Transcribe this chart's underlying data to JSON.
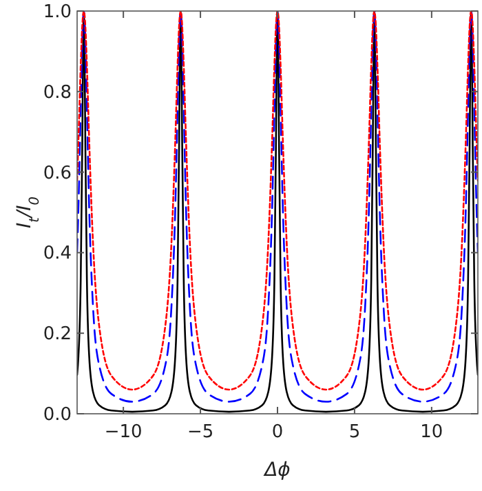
{
  "chart_data": {
    "type": "line",
    "xlabel": "Δϕ",
    "ylabel": "I$_{t}$/I$_{0}$",
    "x": [
      -13,
      -12.916,
      -12.766,
      -12.666,
      -12.616,
      -12.566,
      -12.516,
      -12.466,
      -12.366,
      -12.216,
      -11.966,
      -11.566,
      -10.766,
      -9.425,
      -8.083,
      -7.283,
      -6.883,
      -6.633,
      -6.483,
      -6.383,
      -6.333,
      -6.283,
      -6.233,
      -6.183,
      -6.083,
      -5.933,
      -5.683,
      -5.283,
      -4.483,
      -3.142,
      -1.8,
      -1,
      -0.6,
      -0.35,
      -0.2,
      -0.1,
      -0.05,
      0,
      0.05,
      0.1,
      0.2,
      0.35,
      0.6,
      1,
      1.8,
      3.142,
      4.483,
      5.283,
      5.683,
      5.933,
      6.083,
      6.183,
      6.233,
      6.283,
      6.333,
      6.383,
      6.483,
      6.633,
      6.883,
      7.283,
      8.083,
      9.425,
      10.766,
      11.566,
      11.966,
      12.216,
      12.366,
      12.466,
      12.516,
      12.566,
      12.616,
      12.666,
      12.766,
      12.916,
      13
    ],
    "series": [
      {
        "color": "#000000",
        "line_style": "solid",
        "values": [
          0.097,
          0.142,
          0.334,
          0.667,
          0.889,
          1,
          0.889,
          0.667,
          0.334,
          0.142,
          0.054,
          0.021,
          0.008,
          0.005,
          0.008,
          0.021,
          0.054,
          0.142,
          0.334,
          0.667,
          0.889,
          1,
          0.889,
          0.667,
          0.334,
          0.142,
          0.054,
          0.021,
          0.008,
          0.005,
          0.008,
          0.021,
          0.054,
          0.142,
          0.334,
          0.667,
          0.889,
          1,
          0.889,
          0.667,
          0.334,
          0.142,
          0.054,
          0.021,
          0.008,
          0.005,
          0.008,
          0.021,
          0.054,
          0.142,
          0.334,
          0.667,
          0.889,
          1,
          0.889,
          0.667,
          0.334,
          0.142,
          0.054,
          0.021,
          0.008,
          0.005,
          0.008,
          0.021,
          0.054,
          0.142,
          0.334,
          0.667,
          0.889,
          1,
          0.889,
          0.667,
          0.334,
          0.142,
          0.097
        ]
      },
      {
        "color": "#0000ff",
        "line_style": "dashed",
        "values": [
          0.403,
          0.508,
          0.758,
          0.926,
          0.98,
          1,
          0.98,
          0.926,
          0.758,
          0.508,
          0.264,
          0.12,
          0.049,
          0.03,
          0.049,
          0.12,
          0.264,
          0.508,
          0.758,
          0.926,
          0.98,
          1,
          0.98,
          0.926,
          0.758,
          0.508,
          0.264,
          0.12,
          0.049,
          0.03,
          0.049,
          0.12,
          0.264,
          0.508,
          0.758,
          0.926,
          0.98,
          1,
          0.98,
          0.926,
          0.758,
          0.508,
          0.264,
          0.12,
          0.049,
          0.03,
          0.049,
          0.12,
          0.264,
          0.508,
          0.758,
          0.926,
          0.98,
          1,
          0.98,
          0.926,
          0.758,
          0.508,
          0.264,
          0.12,
          0.049,
          0.03,
          0.049,
          0.12,
          0.264,
          0.508,
          0.758,
          0.926,
          0.98,
          1,
          0.98,
          0.926,
          0.758,
          0.508,
          0.403
        ]
      },
      {
        "color": "#ff0000",
        "line_style": "dotted",
        "values": [
          0.579,
          0.677,
          0.865,
          0.962,
          0.99,
          1,
          0.99,
          0.962,
          0.865,
          0.677,
          0.422,
          0.217,
          0.094,
          0.06,
          0.094,
          0.217,
          0.422,
          0.677,
          0.865,
          0.962,
          0.99,
          1,
          0.99,
          0.962,
          0.865,
          0.677,
          0.422,
          0.217,
          0.094,
          0.06,
          0.094,
          0.217,
          0.422,
          0.677,
          0.865,
          0.962,
          0.99,
          1,
          0.99,
          0.962,
          0.865,
          0.677,
          0.422,
          0.217,
          0.094,
          0.06,
          0.094,
          0.217,
          0.422,
          0.677,
          0.865,
          0.962,
          0.99,
          1,
          0.99,
          0.962,
          0.865,
          0.677,
          0.422,
          0.217,
          0.094,
          0.06,
          0.094,
          0.217,
          0.422,
          0.677,
          0.865,
          0.962,
          0.99,
          1,
          0.99,
          0.962,
          0.865,
          0.677,
          0.579
        ]
      }
    ],
    "xlim": [
      -13,
      13
    ],
    "ylim": [
      0,
      1
    ],
    "xticks": [
      {
        "value": -10,
        "label": "−10"
      },
      {
        "value": -5,
        "label": "−5"
      },
      0,
      5,
      10
    ],
    "yticks": [
      {
        "value": 0,
        "label": "0.0"
      },
      0.2,
      0.4,
      0.6,
      0.8,
      {
        "value": 1,
        "label": "1.0"
      }
    ],
    "grid": false,
    "marker": "none"
  }
}
